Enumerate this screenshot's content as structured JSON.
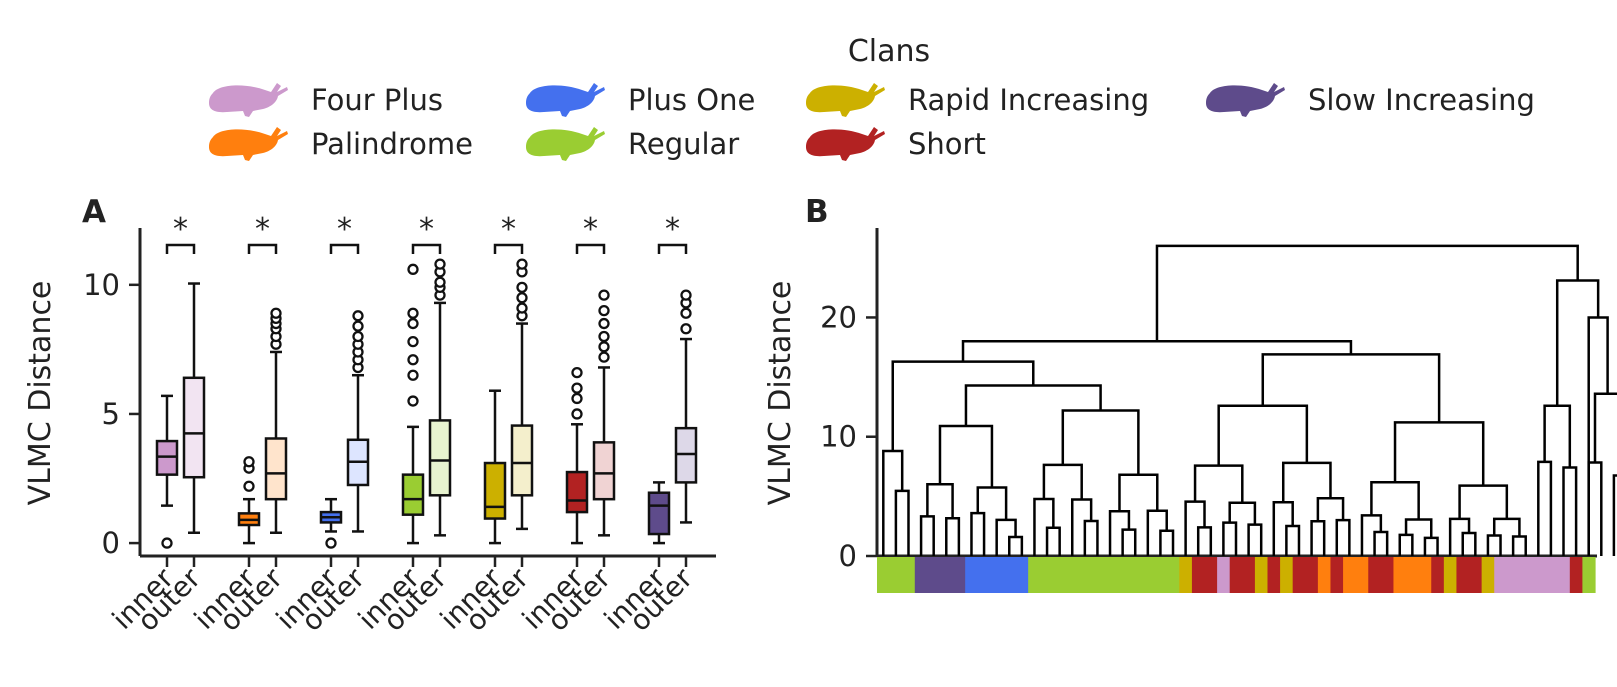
{
  "legend": {
    "title": "Clans",
    "items": [
      {
        "label": "Four Plus",
        "color": "#cc99cc"
      },
      {
        "label": "Plus One",
        "color": "#4470ee"
      },
      {
        "label": "Rapid Increasing",
        "color": "#ccb000"
      },
      {
        "label": "Slow Increasing",
        "color": "#5e4b8b"
      },
      {
        "label": "Palindrome",
        "color": "#ff7f0e"
      },
      {
        "label": "Regular",
        "color": "#9acd32"
      },
      {
        "label": "Short",
        "color": "#b22222"
      }
    ],
    "icon": "sperm-whale-icon"
  },
  "chart_data": [
    {
      "type": "box",
      "panel_label": "A",
      "ylabel": "VLMC Distance",
      "ylim": [
        -0.5,
        12.2
      ],
      "yticks": [
        0,
        5,
        10
      ],
      "tick_labels": [
        "inner",
        "outer"
      ],
      "significance_marker": "*",
      "groups": [
        {
          "clan": "Four Plus",
          "color": "#cc99cc",
          "light": "#f2e4f2",
          "inner": {
            "whislo": 1.45,
            "q1": 2.65,
            "med": 3.35,
            "q3": 3.95,
            "whishi": 5.7,
            "fliers": [
              0.0
            ]
          },
          "outer": {
            "whislo": 0.4,
            "q1": 2.55,
            "med": 4.25,
            "q3": 6.4,
            "whishi": 10.05,
            "fliers": []
          }
        },
        {
          "clan": "Palindrome",
          "color": "#ff7f0e",
          "light": "#ffe4cc",
          "inner": {
            "whislo": 0.0,
            "q1": 0.7,
            "med": 0.9,
            "q3": 1.15,
            "whishi": 1.7,
            "fliers": [
              2.2,
              2.9,
              3.15
            ]
          },
          "outer": {
            "whislo": 0.4,
            "q1": 1.7,
            "med": 2.7,
            "q3": 4.05,
            "whishi": 7.4,
            "fliers": [
              7.7,
              8.0,
              8.3,
              8.5,
              8.7,
              8.9
            ]
          }
        },
        {
          "clan": "Plus One",
          "color": "#4470ee",
          "light": "#dde5ff",
          "inner": {
            "whislo": 0.45,
            "q1": 0.8,
            "med": 1.0,
            "q3": 1.2,
            "whishi": 1.7,
            "fliers": [
              0.0
            ]
          },
          "outer": {
            "whislo": 0.45,
            "q1": 2.25,
            "med": 3.15,
            "q3": 4.0,
            "whishi": 6.5,
            "fliers": [
              6.8,
              7.1,
              7.4,
              7.7,
              8.0,
              8.4,
              8.8
            ]
          }
        },
        {
          "clan": "Regular",
          "color": "#9acd32",
          "light": "#e8f4d0",
          "inner": {
            "whislo": 0.0,
            "q1": 1.1,
            "med": 1.7,
            "q3": 2.65,
            "whishi": 4.5,
            "fliers": [
              5.5,
              6.5,
              7.1,
              7.8,
              8.5,
              8.9,
              10.6
            ]
          },
          "outer": {
            "whislo": 0.3,
            "q1": 1.85,
            "med": 3.2,
            "q3": 4.75,
            "whishi": 9.3,
            "fliers": [
              9.6,
              9.9,
              10.1,
              10.5,
              10.8
            ]
          }
        },
        {
          "clan": "Rapid Increasing",
          "color": "#ccb000",
          "light": "#f4efcc",
          "inner": {
            "whislo": 0.0,
            "q1": 0.95,
            "med": 1.4,
            "q3": 3.1,
            "whishi": 5.9,
            "fliers": []
          },
          "outer": {
            "whislo": 0.55,
            "q1": 1.85,
            "med": 3.1,
            "q3": 4.55,
            "whishi": 8.5,
            "fliers": [
              8.8,
              9.1,
              9.5,
              9.9,
              10.5,
              10.8
            ]
          }
        },
        {
          "clan": "Short",
          "color": "#b22222",
          "light": "#f0d3d3",
          "inner": {
            "whislo": 0.0,
            "q1": 1.2,
            "med": 1.65,
            "q3": 2.75,
            "whishi": 4.6,
            "fliers": [
              5.0,
              5.6,
              6.0,
              6.6
            ]
          },
          "outer": {
            "whislo": 0.3,
            "q1": 1.7,
            "med": 2.7,
            "q3": 3.9,
            "whishi": 6.8,
            "fliers": [
              7.2,
              7.6,
              8.0,
              8.5,
              9.0,
              9.6
            ]
          }
        },
        {
          "clan": "Slow Increasing",
          "color": "#5e4b8b",
          "light": "#ddd8e8",
          "inner": {
            "whislo": 0.0,
            "q1": 0.35,
            "med": 1.45,
            "q3": 1.95,
            "whishi": 2.35,
            "fliers": []
          },
          "outer": {
            "whislo": 0.8,
            "q1": 2.35,
            "med": 3.45,
            "q3": 4.45,
            "whishi": 7.9,
            "fliers": [
              8.3,
              8.9,
              9.3,
              9.6
            ]
          }
        }
      ]
    },
    {
      "type": "dendrogram",
      "panel_label": "B",
      "ylabel": "VLMC Distance",
      "ylim": [
        0,
        27.5
      ],
      "yticks": [
        0,
        10,
        20
      ],
      "merge_heights": [
        26.0,
        23.1,
        20.0,
        18.0,
        16.3,
        16.9,
        14.3,
        12.6,
        10.9,
        8.8,
        8.2,
        7.5,
        6.5,
        5.4,
        4.2,
        4.0
      ],
      "leaf_color_strip": [
        {
          "clan": "Regular",
          "width": 3
        },
        {
          "clan": "Slow Increasing",
          "width": 4
        },
        {
          "clan": "Plus One",
          "width": 5
        },
        {
          "clan": "Regular",
          "width": 12
        },
        {
          "clan": "Rapid Increasing",
          "width": 1
        },
        {
          "clan": "Short",
          "width": 2
        },
        {
          "clan": "Four Plus",
          "width": 1
        },
        {
          "clan": "Short",
          "width": 2
        },
        {
          "clan": "Rapid Increasing",
          "width": 1
        },
        {
          "clan": "Short",
          "width": 1
        },
        {
          "clan": "Rapid Increasing",
          "width": 1
        },
        {
          "clan": "Short",
          "width": 2
        },
        {
          "clan": "Palindrome",
          "width": 1
        },
        {
          "clan": "Short",
          "width": 1
        },
        {
          "clan": "Palindrome",
          "width": 2
        },
        {
          "clan": "Short",
          "width": 2
        },
        {
          "clan": "Palindrome",
          "width": 3
        },
        {
          "clan": "Short",
          "width": 1
        },
        {
          "clan": "Rapid Increasing",
          "width": 1
        },
        {
          "clan": "Short",
          "width": 2
        },
        {
          "clan": "Rapid Increasing",
          "width": 1
        },
        {
          "clan": "Four Plus",
          "width": 6
        },
        {
          "clan": "Short",
          "width": 1
        },
        {
          "clan": "Regular",
          "width": 1
        }
      ]
    }
  ]
}
